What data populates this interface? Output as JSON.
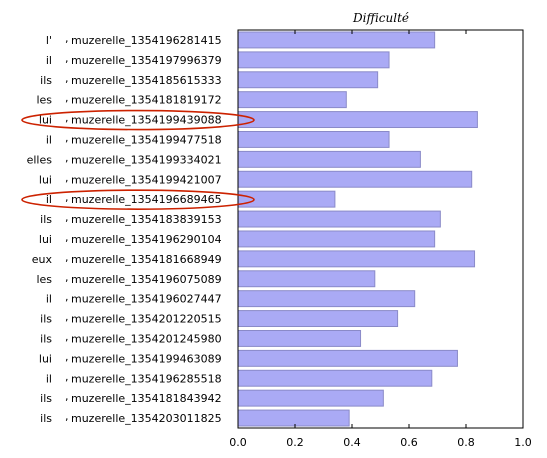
{
  "chart_data": {
    "type": "bar",
    "orientation": "horizontal",
    "title": "Difficulté",
    "xlabel": "",
    "ylabel": "",
    "xlim": [
      0.0,
      1.0
    ],
    "x_ticks": [
      "0.0",
      "0.2",
      "0.4",
      "0.6",
      "0.8",
      "1.0"
    ],
    "grid": false,
    "legend": "none",
    "bar_color": "#aaaaf5",
    "bar_edge_color": "#8a8ac8",
    "highlight_color": "#cc2200",
    "rows": [
      {
        "pronoun": "l'",
        "id": "muzerelle_1354196281415",
        "value": 0.69,
        "highlighted": false
      },
      {
        "pronoun": "il",
        "id": "muzerelle_1354197996379",
        "value": 0.53,
        "highlighted": false
      },
      {
        "pronoun": "ils",
        "id": "muzerelle_1354185615333",
        "value": 0.49,
        "highlighted": false
      },
      {
        "pronoun": "les",
        "id": "muzerelle_1354181819172",
        "value": 0.38,
        "highlighted": false
      },
      {
        "pronoun": "lui",
        "id": "muzerelle_1354199439088",
        "value": 0.84,
        "highlighted": true
      },
      {
        "pronoun": "il",
        "id": "muzerelle_1354199477518",
        "value": 0.53,
        "highlighted": false
      },
      {
        "pronoun": "elles",
        "id": "muzerelle_1354199334021",
        "value": 0.64,
        "highlighted": false
      },
      {
        "pronoun": "lui",
        "id": "muzerelle_1354199421007",
        "value": 0.82,
        "highlighted": false
      },
      {
        "pronoun": "il",
        "id": "muzerelle_1354196689465",
        "value": 0.34,
        "highlighted": true
      },
      {
        "pronoun": "ils",
        "id": "muzerelle_1354183839153",
        "value": 0.71,
        "highlighted": false
      },
      {
        "pronoun": "lui",
        "id": "muzerelle_1354196290104",
        "value": 0.69,
        "highlighted": false
      },
      {
        "pronoun": "eux",
        "id": "muzerelle_1354181668949",
        "value": 0.83,
        "highlighted": false
      },
      {
        "pronoun": "les",
        "id": "muzerelle_1354196075089",
        "value": 0.48,
        "highlighted": false
      },
      {
        "pronoun": "il",
        "id": "muzerelle_1354196027447",
        "value": 0.62,
        "highlighted": false
      },
      {
        "pronoun": "ils",
        "id": "muzerelle_1354201220515",
        "value": 0.56,
        "highlighted": false
      },
      {
        "pronoun": "ils",
        "id": "muzerelle_1354201245980",
        "value": 0.43,
        "highlighted": false
      },
      {
        "pronoun": "lui",
        "id": "muzerelle_1354199463089",
        "value": 0.77,
        "highlighted": false
      },
      {
        "pronoun": "il",
        "id": "muzerelle_1354196285518",
        "value": 0.68,
        "highlighted": false
      },
      {
        "pronoun": "ils",
        "id": "muzerelle_1354181843942",
        "value": 0.51,
        "highlighted": false
      },
      {
        "pronoun": "ils",
        "id": "muzerelle_1354203011825",
        "value": 0.39,
        "highlighted": false
      }
    ]
  }
}
